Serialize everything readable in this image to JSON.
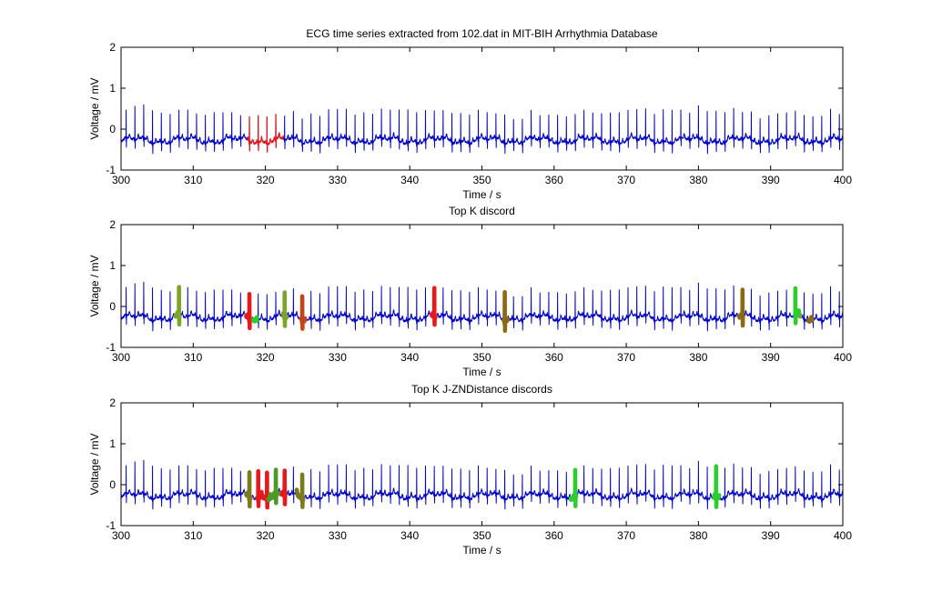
{
  "chart_data": [
    {
      "type": "line",
      "title": "ECG time series extracted from 102.dat in MIT-BIH Arrhythmia Database",
      "xlabel": "Time / s",
      "ylabel": "Voltage / mV",
      "xlim": [
        300,
        400
      ],
      "ylim": [
        -1,
        2
      ],
      "xticks": [
        300,
        310,
        320,
        330,
        340,
        350,
        360,
        370,
        380,
        390,
        400
      ],
      "yticks": [
        -1,
        0,
        1,
        2
      ],
      "grid": false,
      "series": [
        {
          "color": "#0000bf",
          "segments": [
            [
              300,
              400
            ]
          ]
        },
        {
          "color": "#e41a1c",
          "segments": [
            [
              317.5,
              322.5
            ]
          ]
        }
      ]
    },
    {
      "type": "line",
      "title": "Top K discord",
      "xlabel": "Time / s",
      "ylabel": "Voltage / mV",
      "xlim": [
        300,
        400
      ],
      "ylim": [
        -1,
        2
      ],
      "xticks": [
        300,
        310,
        320,
        330,
        340,
        350,
        360,
        370,
        380,
        390,
        400
      ],
      "yticks": [
        -1,
        0,
        1,
        2
      ],
      "grid": false,
      "series": [
        {
          "color": "#0000bf",
          "segments": [
            [
              300,
              400
            ]
          ]
        },
        {
          "color": "#7ba428",
          "segments": [
            [
              307.5,
              308.1
            ],
            [
              322.4,
              323.0
            ],
            [
              393.5,
              394.1
            ]
          ]
        },
        {
          "color": "#e41a1c",
          "segments": [
            [
              317.3,
              317.9
            ],
            [
              343.0,
              343.6
            ]
          ]
        },
        {
          "color": "#2ecc2e",
          "segments": [
            [
              318.3,
              318.9
            ],
            [
              393.4,
              394.0
            ]
          ]
        },
        {
          "color": "#c0441c",
          "segments": [
            [
              324.9,
              325.5
            ]
          ]
        },
        {
          "color": "#8b6914",
          "segments": [
            [
              353.0,
              353.6
            ],
            [
              385.6,
              386.2
            ],
            [
              395.2,
              395.8
            ]
          ]
        }
      ]
    },
    {
      "type": "line",
      "title": "Top K J-ZNDistance discords",
      "xlabel": "Time / s",
      "ylabel": "Voltage / mV",
      "xlim": [
        300,
        400
      ],
      "ylim": [
        -1,
        2
      ],
      "xticks": [
        300,
        310,
        320,
        330,
        340,
        350,
        360,
        370,
        380,
        390,
        400
      ],
      "yticks": [
        -1,
        0,
        1,
        2
      ],
      "grid": false,
      "series": [
        {
          "color": "#0000bf",
          "segments": [
            [
              300,
              400
            ]
          ]
        },
        {
          "color": "#7b7b1c",
          "segments": [
            [
              317.3,
              318.0
            ],
            [
              324.3,
              325.3
            ]
          ]
        },
        {
          "color": "#e41a1c",
          "segments": [
            [
              318.8,
              320.4
            ],
            [
              322.0,
              322.8
            ]
          ]
        },
        {
          "color": "#4a9a2a",
          "segments": [
            [
              320.4,
              321.8
            ]
          ]
        },
        {
          "color": "#2ecc2e",
          "segments": [
            [
              362.3,
              363.1
            ],
            [
              382.1,
              382.9
            ]
          ]
        }
      ]
    }
  ]
}
